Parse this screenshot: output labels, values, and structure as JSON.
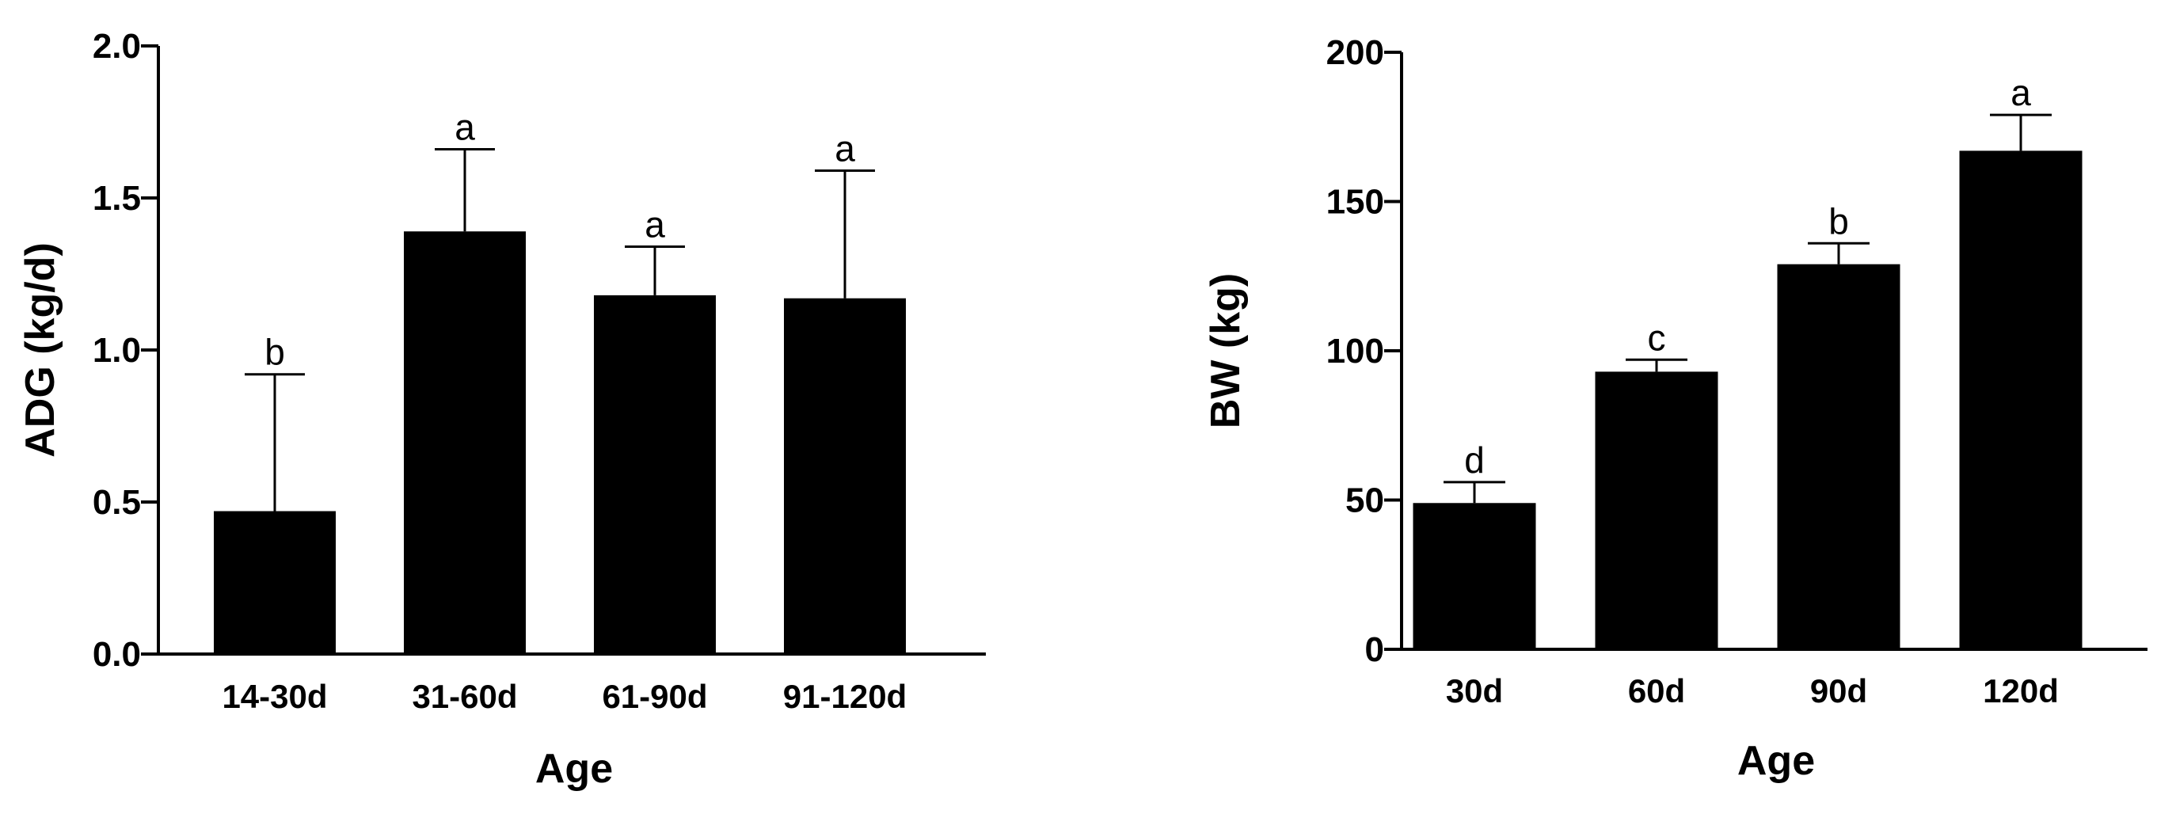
{
  "chart_data": [
    {
      "type": "bar",
      "categories": [
        "14-30d",
        "31-60d",
        "61-90d",
        "91-120d"
      ],
      "values": [
        0.47,
        1.39,
        1.18,
        1.17
      ],
      "errors": [
        0.45,
        0.27,
        0.16,
        0.42
      ],
      "significance": [
        "b",
        "a",
        "a",
        "a"
      ],
      "xlabel": "Age",
      "ylabel": "ADG (kg/d)",
      "ylim": [
        0,
        2.0
      ],
      "yticks": [
        "0.0",
        "0.5",
        "1.0",
        "1.5",
        "2.0"
      ],
      "ytick_values": [
        0,
        0.5,
        1.0,
        1.5,
        2.0
      ],
      "bar_color": "#000000",
      "grid": false
    },
    {
      "type": "bar",
      "categories": [
        "30d",
        "60d",
        "90d",
        "120d"
      ],
      "values": [
        49,
        93,
        129,
        167
      ],
      "errors": [
        7,
        4,
        7,
        12
      ],
      "significance": [
        "d",
        "c",
        "b",
        "a"
      ],
      "xlabel": "Age",
      "ylabel": "BW (kg)",
      "ylim": [
        0,
        200
      ],
      "yticks": [
        "0",
        "50",
        "100",
        "150",
        "200"
      ],
      "ytick_values": [
        0,
        50,
        100,
        150,
        200
      ],
      "bar_color": "#000000",
      "grid": false
    }
  ]
}
